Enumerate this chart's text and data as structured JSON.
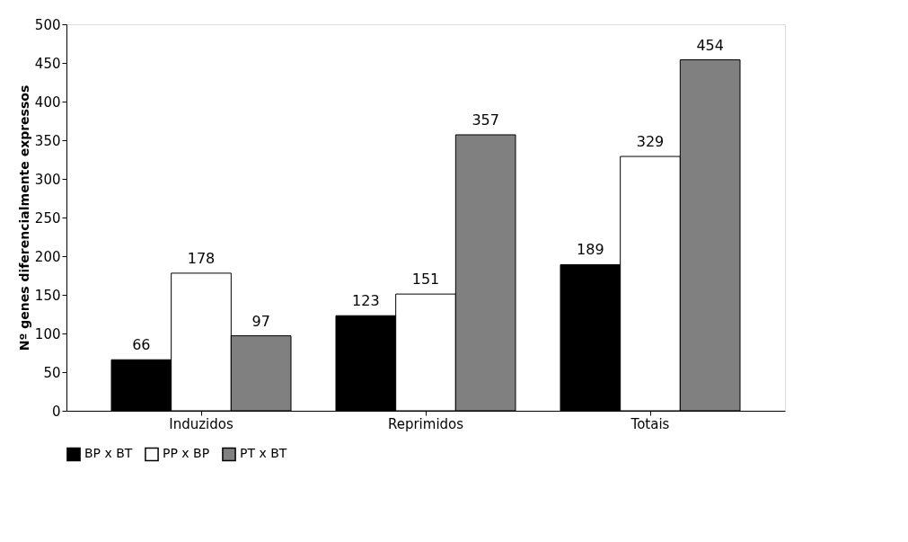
{
  "chart_data": {
    "type": "bar",
    "ylabel": "Nº genes diferencialmente expressos",
    "categories": [
      "Induzidos",
      "Reprimidos",
      "Totais"
    ],
    "series": [
      {
        "name": "BP x BT",
        "color": "#000000",
        "values": [
          66,
          123,
          189
        ]
      },
      {
        "name": "PP x BP",
        "color": "#ffffff",
        "values": [
          178,
          151,
          329
        ]
      },
      {
        "name": "PT x BT",
        "color": "#808080",
        "values": [
          97,
          357,
          454
        ]
      }
    ],
    "ylim": [
      0,
      500
    ],
    "yticks": [
      0,
      50,
      100,
      150,
      200,
      250,
      300,
      350,
      400,
      450,
      500
    ],
    "grid": false,
    "legend": "bottom",
    "data_labels": true
  }
}
